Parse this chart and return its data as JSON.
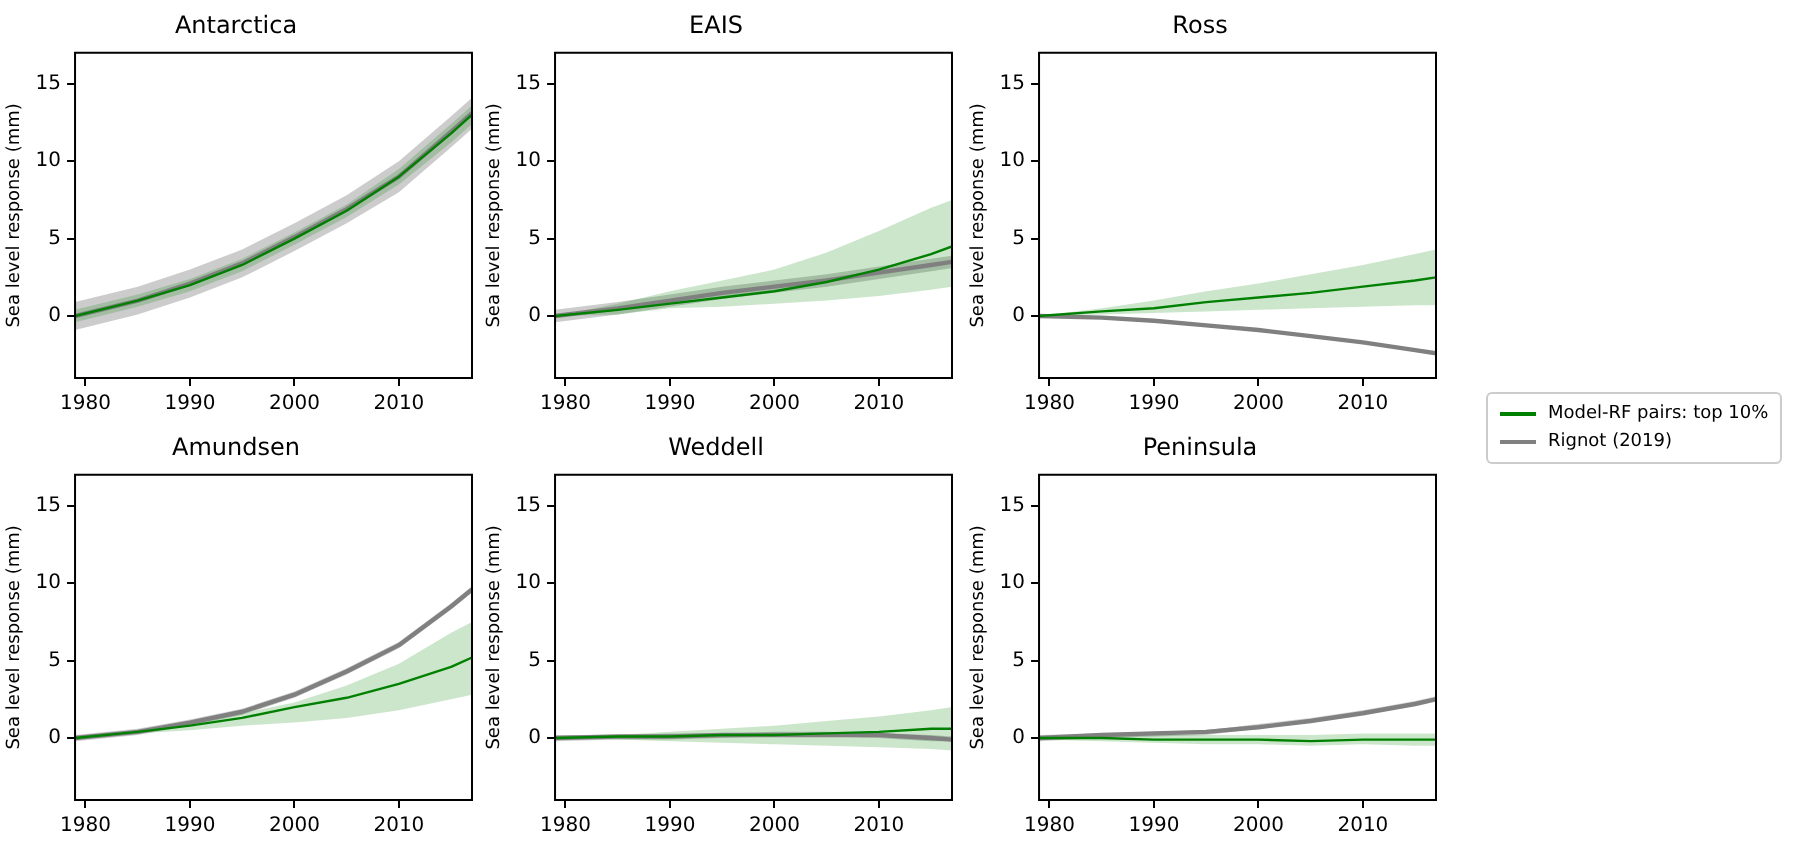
{
  "chart_data": [
    {
      "type": "line",
      "title": "Antarctica",
      "ylabel": "Sea level response (mm)",
      "x": [
        1979,
        1985,
        1990,
        1995,
        2000,
        2005,
        2010,
        2015,
        2017
      ],
      "xlim": [
        1979,
        2017
      ],
      "xticks": [
        1980,
        1990,
        2000,
        2010
      ],
      "ylim": [
        -4,
        17
      ],
      "yticks": [
        0,
        5,
        10,
        15
      ],
      "grid": false,
      "marker": "none",
      "series": [
        {
          "color": "#008000",
          "values": [
            0,
            1.0,
            2.0,
            3.3,
            5.0,
            6.8,
            9.0,
            11.8,
            13.0
          ],
          "lower": [
            -0.4,
            0.6,
            1.6,
            2.9,
            4.6,
            6.4,
            8.5,
            11.2,
            12.4
          ],
          "upper": [
            0.4,
            1.4,
            2.4,
            3.7,
            5.4,
            7.2,
            9.5,
            12.4,
            13.6
          ]
        },
        {
          "color": "#808080",
          "values": [
            0,
            1.0,
            2.1,
            3.4,
            5.1,
            6.9,
            9.0,
            11.9,
            13.1
          ],
          "lower": [
            -0.9,
            0.1,
            1.2,
            2.5,
            4.2,
            6.0,
            8.0,
            10.9,
            12.1
          ],
          "upper": [
            0.9,
            1.9,
            3.0,
            4.3,
            6.0,
            7.8,
            10.0,
            12.9,
            14.1
          ]
        }
      ]
    },
    {
      "type": "line",
      "title": "EAIS",
      "ylabel": "Sea level response (mm)",
      "x": [
        1979,
        1985,
        1990,
        1995,
        2000,
        2005,
        2010,
        2015,
        2017
      ],
      "xlim": [
        1979,
        2017
      ],
      "xticks": [
        1980,
        1990,
        2000,
        2010
      ],
      "ylim": [
        -4,
        17
      ],
      "yticks": [
        0,
        5,
        10,
        15
      ],
      "grid": false,
      "marker": "none",
      "series": [
        {
          "color": "#008000",
          "values": [
            0,
            0.4,
            0.8,
            1.2,
            1.6,
            2.2,
            3.0,
            4.0,
            4.5
          ],
          "lower": [
            0,
            0.1,
            0.5,
            0.6,
            0.8,
            1.0,
            1.3,
            1.7,
            1.9
          ],
          "upper": [
            0,
            0.8,
            1.6,
            2.3,
            3.0,
            4.1,
            5.5,
            7.0,
            7.5
          ]
        },
        {
          "color": "#808080",
          "values": [
            0,
            0.5,
            1.0,
            1.5,
            1.9,
            2.3,
            2.8,
            3.3,
            3.5
          ],
          "lower": [
            -0.4,
            0.1,
            0.6,
            1.1,
            1.5,
            1.9,
            2.4,
            2.9,
            3.1
          ],
          "upper": [
            0.4,
            0.9,
            1.4,
            1.9,
            2.3,
            2.7,
            3.2,
            3.7,
            3.9
          ]
        }
      ]
    },
    {
      "type": "line",
      "title": "Ross",
      "ylabel": "Sea level response (mm)",
      "x": [
        1979,
        1985,
        1990,
        1995,
        2000,
        2005,
        2010,
        2015,
        2017
      ],
      "xlim": [
        1979,
        2017
      ],
      "xticks": [
        1980,
        1990,
        2000,
        2010
      ],
      "ylim": [
        -4,
        17
      ],
      "yticks": [
        0,
        5,
        10,
        15
      ],
      "grid": false,
      "marker": "none",
      "legend": "right",
      "series": [
        {
          "name": "Model-RF pairs: top 10%",
          "color": "#008000",
          "values": [
            0,
            0.3,
            0.5,
            0.9,
            1.2,
            1.5,
            1.9,
            2.3,
            2.5
          ],
          "lower": [
            0,
            0.1,
            0.2,
            0.3,
            0.4,
            0.5,
            0.6,
            0.7,
            0.7
          ],
          "upper": [
            0,
            0.5,
            1.0,
            1.6,
            2.1,
            2.7,
            3.3,
            4.0,
            4.3
          ]
        },
        {
          "name": "Rignot (2019)",
          "color": "#808080",
          "values": [
            0,
            -0.1,
            -0.3,
            -0.6,
            -0.9,
            -1.3,
            -1.7,
            -2.2,
            -2.4
          ]
        }
      ]
    },
    {
      "type": "line",
      "title": "Amundsen",
      "ylabel": "Sea level response (mm)",
      "x": [
        1979,
        1985,
        1990,
        1995,
        2000,
        2005,
        2010,
        2015,
        2017
      ],
      "xlim": [
        1979,
        2017
      ],
      "xticks": [
        1980,
        1990,
        2000,
        2010
      ],
      "ylim": [
        -4,
        17
      ],
      "yticks": [
        0,
        5,
        10,
        15
      ],
      "grid": false,
      "marker": "none",
      "series": [
        {
          "color": "#008000",
          "values": [
            0,
            0.4,
            0.8,
            1.3,
            2.0,
            2.6,
            3.5,
            4.6,
            5.2
          ],
          "lower": [
            0,
            0.3,
            0.5,
            0.8,
            1.0,
            1.3,
            1.8,
            2.5,
            2.8
          ],
          "upper": [
            0,
            0.4,
            1.0,
            1.6,
            2.3,
            3.4,
            4.8,
            6.8,
            7.5
          ]
        },
        {
          "color": "#808080",
          "values": [
            0,
            0.4,
            1.0,
            1.7,
            2.8,
            4.3,
            6.0,
            8.5,
            9.6
          ],
          "lower": [
            -0.2,
            0.2,
            0.8,
            1.5,
            2.6,
            4.1,
            5.8,
            8.3,
            9.4
          ],
          "upper": [
            0.2,
            0.6,
            1.2,
            1.9,
            3.0,
            4.5,
            6.2,
            8.7,
            9.8
          ]
        }
      ]
    },
    {
      "type": "line",
      "title": "Weddell",
      "ylabel": "Sea level response (mm)",
      "x": [
        1979,
        1985,
        1990,
        1995,
        2000,
        2005,
        2010,
        2015,
        2017
      ],
      "xlim": [
        1979,
        2017
      ],
      "xticks": [
        1980,
        1990,
        2000,
        2010
      ],
      "ylim": [
        -4,
        17
      ],
      "yticks": [
        0,
        5,
        10,
        15
      ],
      "grid": false,
      "marker": "none",
      "series": [
        {
          "color": "#008000",
          "values": [
            0,
            0.1,
            0.1,
            0.2,
            0.2,
            0.3,
            0.4,
            0.6,
            0.6
          ],
          "lower": [
            0,
            -0.1,
            -0.2,
            -0.3,
            -0.4,
            -0.5,
            -0.6,
            -0.7,
            -0.8
          ],
          "upper": [
            0,
            0.2,
            0.4,
            0.6,
            0.8,
            1.1,
            1.4,
            1.8,
            2.0
          ]
        },
        {
          "color": "#808080",
          "values": [
            0,
            0.1,
            0.1,
            0.2,
            0.2,
            0.2,
            0.2,
            0,
            -0.1
          ],
          "lower": [
            -0.2,
            -0.1,
            -0.1,
            0,
            0.1,
            0.1,
            0,
            -0.2,
            -0.2
          ],
          "upper": [
            0.2,
            0.2,
            0.3,
            0.3,
            0.4,
            0.4,
            0.3,
            0.2,
            0.1
          ]
        }
      ]
    },
    {
      "type": "line",
      "title": "Peninsula",
      "ylabel": "Sea level response (mm)",
      "x": [
        1979,
        1985,
        1990,
        1995,
        2000,
        2005,
        2010,
        2015,
        2017
      ],
      "xlim": [
        1979,
        2017
      ],
      "xticks": [
        1980,
        1990,
        2000,
        2010
      ],
      "ylim": [
        -4,
        17
      ],
      "yticks": [
        0,
        5,
        10,
        15
      ],
      "grid": false,
      "marker": "none",
      "series": [
        {
          "color": "#008000",
          "values": [
            0,
            0,
            -0.1,
            -0.1,
            -0.1,
            -0.2,
            -0.1,
            -0.1,
            -0.1
          ],
          "lower": [
            -0.1,
            -0.2,
            -0.3,
            -0.4,
            -0.4,
            -0.5,
            -0.4,
            -0.5,
            -0.5
          ],
          "upper": [
            0.1,
            0.2,
            0.2,
            0.2,
            0.2,
            0.2,
            0.3,
            0.3,
            0.3
          ]
        },
        {
          "color": "#808080",
          "values": [
            0,
            0.2,
            0.3,
            0.4,
            0.7,
            1.1,
            1.6,
            2.2,
            2.5
          ],
          "lower": [
            -0.2,
            0,
            0.1,
            0.2,
            0.6,
            1.0,
            1.5,
            2.1,
            2.4
          ],
          "upper": [
            0.2,
            0.3,
            0.4,
            0.5,
            0.9,
            1.3,
            1.8,
            2.4,
            2.7
          ]
        }
      ]
    }
  ]
}
